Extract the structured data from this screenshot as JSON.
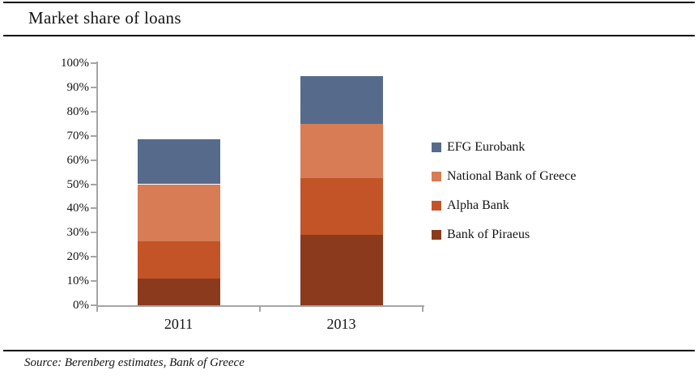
{
  "header": {
    "title": "Market share of loans"
  },
  "footer": {
    "source": "Source: Berenberg estimates, Bank of Greece"
  },
  "chart_data": {
    "type": "bar",
    "subtype": "stacked",
    "title": "Market share of loans",
    "xlabel": "",
    "ylabel": "",
    "categories": [
      "2011",
      "2013"
    ],
    "series": [
      {
        "name": "Bank of Piraeus",
        "color": "#8b3a1d",
        "values": [
          11.0,
          29.0
        ]
      },
      {
        "name": "Alpha Bank",
        "color": "#c35428",
        "values": [
          15.5,
          23.5
        ]
      },
      {
        "name": "National Bank of Greece",
        "color": "#d77c54",
        "values": [
          23.5,
          22.5
        ]
      },
      {
        "name": "EFG Eurobank",
        "color": "#566b8c",
        "values": [
          18.5,
          19.5
        ]
      }
    ],
    "stack_totals": [
      68.5,
      94.5
    ],
    "ylim": [
      0,
      100
    ],
    "y_ticks": [
      "0%",
      "10%",
      "20%",
      "30%",
      "40%",
      "50%",
      "60%",
      "70%",
      "80%",
      "90%",
      "100%"
    ],
    "grid": false,
    "legend_position": "right",
    "legend_order": [
      "EFG Eurobank",
      "National Bank of Greece",
      "Alpha Bank",
      "Bank of Piraeus"
    ],
    "axis_color": "#a5a5a5"
  }
}
